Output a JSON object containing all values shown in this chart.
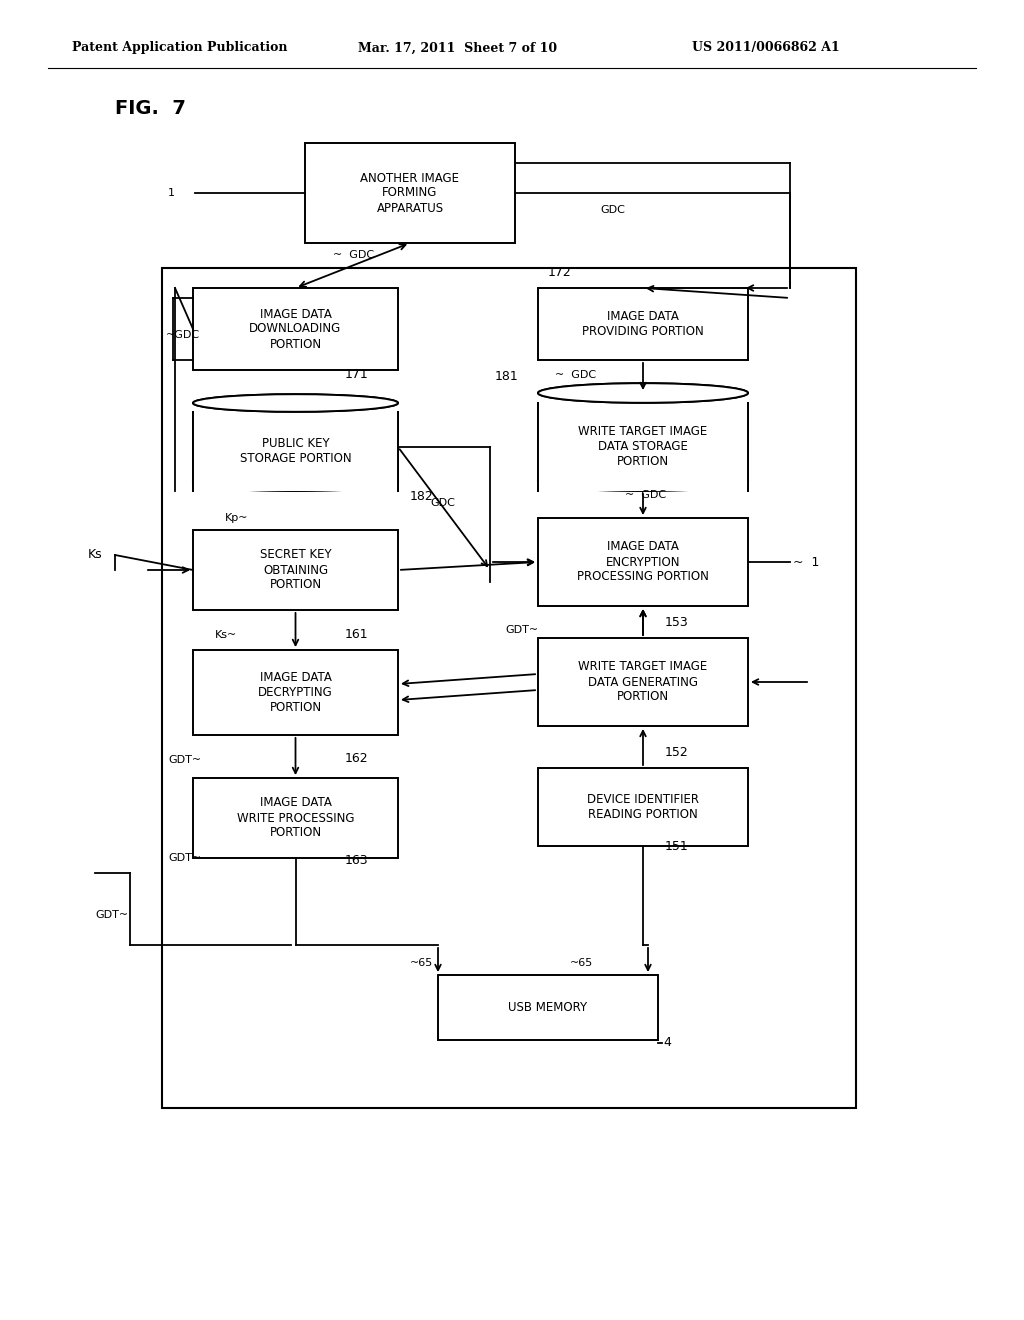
{
  "background": "#ffffff",
  "header_left": "Patent Application Publication",
  "header_mid": "Mar. 17, 2011  Sheet 7 of 10",
  "header_right": "US 2011/0066862 A1",
  "fig_label": "FIG.  7"
}
